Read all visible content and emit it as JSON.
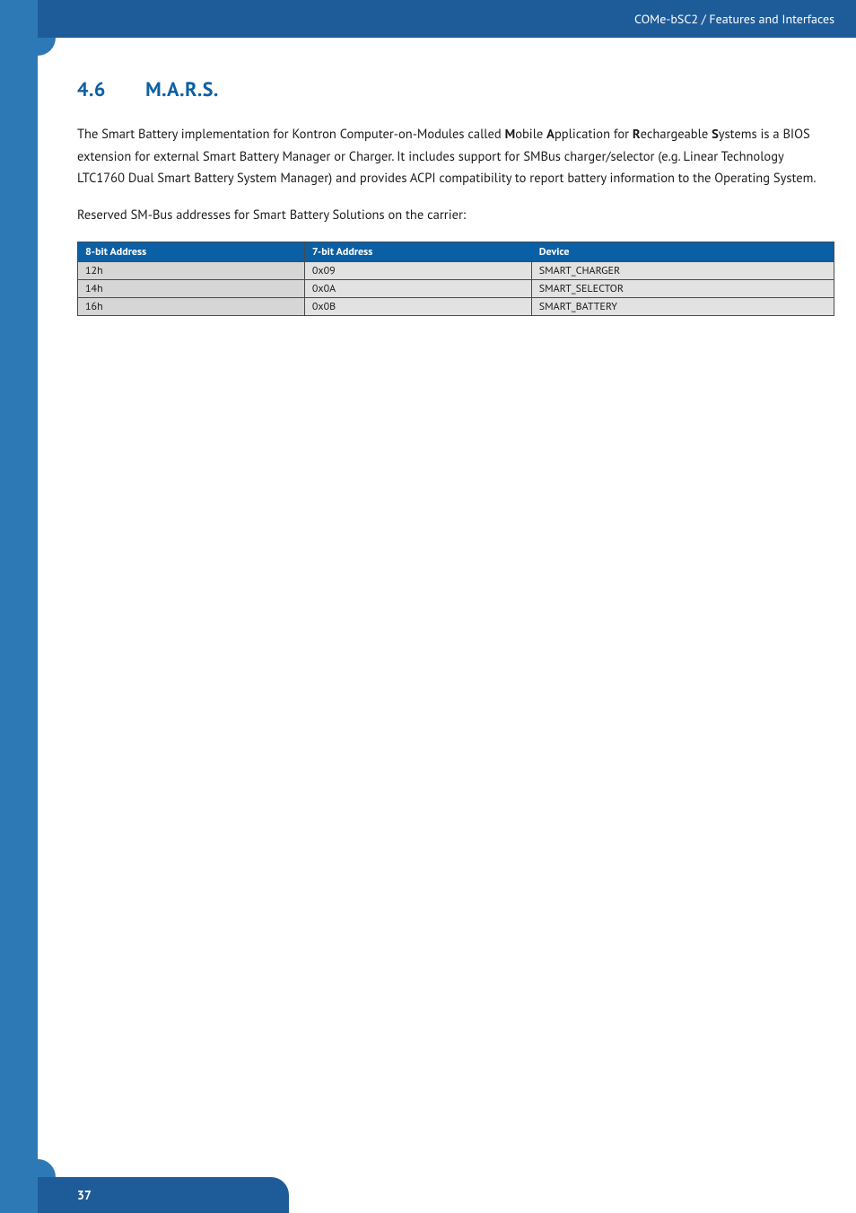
{
  "header": {
    "breadcrumb": "COMe-bSC2 / Features and Interfaces",
    "bar_bg": "#1e5c99",
    "stripe_bg": "#2d79b6",
    "text_color": "#ffffff"
  },
  "section": {
    "number": "4.6",
    "title": "M.A.R.S.",
    "heading_color": "#0b5fa4"
  },
  "paragraphs": {
    "p1_pre": "The Smart Battery implementation for Kontron Computer-on-Modules called ",
    "p1_b1": "M",
    "p1_t1": "obile ",
    "p1_b2": "A",
    "p1_t2": "pplication for ",
    "p1_b3": "R",
    "p1_t3": "echargeable ",
    "p1_b4": "S",
    "p1_t4": "ystems is a BIOS extension for external Smart Battery Manager or Charger. It includes support for SMBus charger/selector (e.g. Linear Technology LTC1760 Dual Smart Battery System Manager) and provides ACPI compatibility to report battery information to the Operating System.",
    "p2": "Reserved SM-Bus addresses for Smart Battery Solutions on the carrier:"
  },
  "table": {
    "header_bg": "#0b5fa4",
    "header_text_color": "#ffffff",
    "row_odd_bg": "#e2e2e2",
    "row_even_bg": "#e2e2e2",
    "col1_bg": "#d6d6d6",
    "border_color": "#4a4a4a",
    "col_widths": [
      "30%",
      "30%",
      "40%"
    ],
    "columns": [
      "8-bit Address",
      "7-bit Address",
      "Device"
    ],
    "rows": [
      [
        "12h",
        "0x09",
        "SMART_CHARGER"
      ],
      [
        "14h",
        "0x0A",
        "SMART_SELECTOR"
      ],
      [
        "16h",
        "0x0B",
        "SMART_BATTERY"
      ]
    ]
  },
  "footer": {
    "page_number": "37",
    "bar_bg": "#1e5c99",
    "text_color": "#ffffff"
  }
}
